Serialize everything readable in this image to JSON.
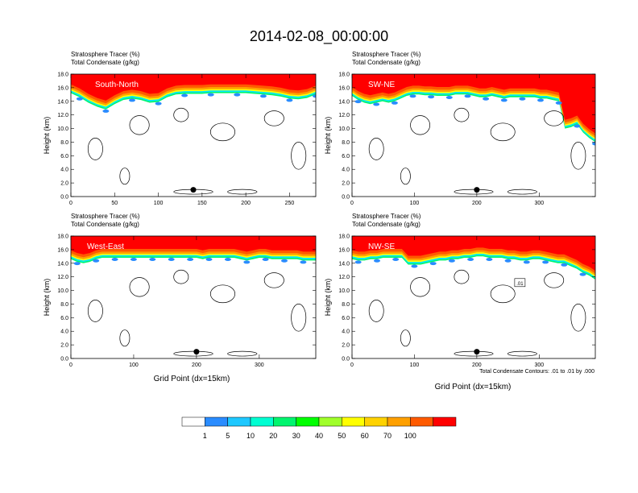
{
  "title": "2014-02-08_00:00:00",
  "chart_data": [
    {
      "type": "heatmap",
      "subtitle_line1": "Stratosphere Tracer   (%)",
      "subtitle_line2": "Total Condensate   (g/kg)",
      "label": "South-North",
      "ylabel": "Height (km)",
      "xlabel": "",
      "xlim": [
        0,
        280
      ],
      "ylim": [
        0,
        18
      ],
      "x_ticks": [
        "0",
        "50",
        "100",
        "150",
        "200",
        "250"
      ],
      "y_ticks": [
        "0.0",
        "2.0",
        "4.0",
        "6.0",
        "8.0",
        "10.0",
        "12.0",
        "14.0",
        "16.0",
        "18.0"
      ],
      "marker_x": 140,
      "marker_y": 1.0,
      "strat_base_km": [
        15.2,
        14.6,
        13.8,
        13.2,
        12.8,
        13.6,
        14.2,
        14.4,
        14.2,
        13.8,
        13.9,
        14.6,
        15.0,
        15.1,
        15.1,
        15.1,
        15.2,
        15.2,
        15.2,
        15.2,
        15.2,
        15.1,
        15.0,
        14.9,
        14.7,
        14.4,
        14.3,
        14.5,
        15.0
      ]
    },
    {
      "type": "heatmap",
      "subtitle_line1": "Stratosphere Tracer   (%)",
      "subtitle_line2": "Total Condensate   (g/kg)",
      "label": "SW-NE",
      "ylabel": "Height (km)",
      "xlabel": "",
      "xlim": [
        0,
        390
      ],
      "ylim": [
        0,
        18
      ],
      "x_ticks": [
        "0",
        "100",
        "200",
        "300"
      ],
      "y_ticks": [
        "0.0",
        "2.0",
        "4.0",
        "6.0",
        "8.0",
        "10.0",
        "12.0",
        "14.0",
        "16.0",
        "18.0"
      ],
      "marker_x": 200,
      "marker_y": 1.0,
      "strat_base_km": [
        14.8,
        14.2,
        13.8,
        13.6,
        13.8,
        14.0,
        13.8,
        14.0,
        14.4,
        14.8,
        15.0,
        15.0,
        14.9,
        14.9,
        14.8,
        14.8,
        14.8,
        15.0,
        15.0,
        15.0,
        14.8,
        14.6,
        14.6,
        14.8,
        14.6,
        14.4,
        14.6,
        14.6,
        14.6,
        14.6,
        14.6,
        14.4,
        14.4,
        14.2,
        14.0,
        10.0,
        10.2,
        10.6,
        9.4,
        8.6,
        8.0
      ]
    },
    {
      "type": "heatmap",
      "subtitle_line1": "Stratosphere Tracer   (%)",
      "subtitle_line2": "Total Condensate   (g/kg)",
      "label": "West-East",
      "ylabel": "Height (km)",
      "xlabel": "Grid Point (dx=15km)",
      "xlim": [
        0,
        390
      ],
      "ylim": [
        0,
        18
      ],
      "x_ticks": [
        "0",
        "100",
        "200",
        "300"
      ],
      "y_ticks": [
        "0.0",
        "2.0",
        "4.0",
        "6.0",
        "8.0",
        "10.0",
        "12.0",
        "14.0",
        "16.0",
        "18.0"
      ],
      "marker_x": 200,
      "marker_y": 1.0,
      "strat_base_km": [
        14.6,
        14.2,
        14.0,
        14.2,
        14.6,
        14.8,
        14.8,
        14.8,
        14.8,
        14.8,
        14.8,
        14.8,
        14.8,
        14.8,
        14.8,
        14.8,
        14.8,
        14.8,
        14.8,
        14.8,
        14.8,
        14.6,
        14.8,
        14.8,
        14.8,
        14.8,
        14.8,
        14.6,
        14.4,
        14.6,
        14.8,
        14.8,
        14.6,
        14.6,
        14.6,
        14.6,
        14.6,
        14.4,
        14.4,
        14.4
      ]
    },
    {
      "type": "heatmap",
      "subtitle_line1": "Stratosphere Tracer   (%)",
      "subtitle_line2": "Total Condensate   (g/kg)",
      "label": "NW-SE",
      "ylabel": "Height (km)",
      "xlabel": "Grid Point (dx=15km)",
      "contour_note": "Total Condensate Contours: .01 to .01 by .000",
      "contour_label": ".01",
      "xlim": [
        0,
        390
      ],
      "ylim": [
        0,
        18
      ],
      "x_ticks": [
        "0",
        "100",
        "200",
        "300"
      ],
      "y_ticks": [
        "0.0",
        "2.0",
        "4.0",
        "6.0",
        "8.0",
        "10.0",
        "12.0",
        "14.0",
        "16.0",
        "18.0"
      ],
      "marker_x": 200,
      "marker_y": 1.0,
      "strat_base_km": [
        14.6,
        14.4,
        14.4,
        14.6,
        14.6,
        14.8,
        14.8,
        14.8,
        14.8,
        13.8,
        13.8,
        13.8,
        14.0,
        14.2,
        14.4,
        14.4,
        14.6,
        14.6,
        14.8,
        14.8,
        15.0,
        15.0,
        14.8,
        14.8,
        14.8,
        14.6,
        14.6,
        14.4,
        14.4,
        14.6,
        14.6,
        14.4,
        14.2,
        14.0,
        14.0,
        13.6,
        13.2,
        12.6,
        12.2,
        11.6
      ]
    }
  ],
  "colorbar": {
    "labels": [
      "1",
      "5",
      "10",
      "20",
      "30",
      "40",
      "50",
      "60",
      "70",
      "100"
    ],
    "colors": [
      "#ffffff",
      "#2a8cff",
      "#1ec8ff",
      "#00ffd2",
      "#00f56e",
      "#00ff00",
      "#a0ff2a",
      "#ffff00",
      "#ffd200",
      "#ffa000",
      "#ff5a00",
      "#ff0000"
    ]
  }
}
